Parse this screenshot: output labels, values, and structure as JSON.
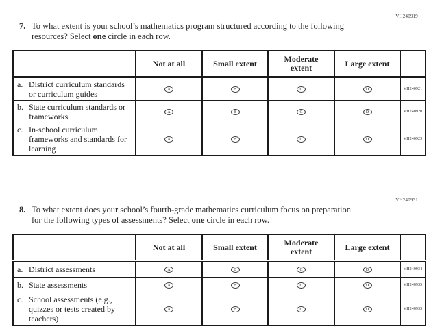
{
  "page": {
    "background": "#ffffff",
    "text_color": "#2b2b2b",
    "border_color": "#1a1a1a"
  },
  "columns": [
    "Not at all",
    "Small extent",
    "Moderate extent",
    "Large extent"
  ],
  "bubble_letters": [
    "A",
    "B",
    "C",
    "D"
  ],
  "questions": [
    {
      "code": "VH240919",
      "number": "7.",
      "text_before_bold": "To what extent is your school’s mathematics program structured according to the following resources? Select ",
      "bold_word": "one",
      "text_after_bold": " circle in each row.",
      "rows": [
        {
          "letter": "a.",
          "label": "District curriculum standards or curriculum guides",
          "code": "VH240921"
        },
        {
          "letter": "b.",
          "label": "State curriculum standards or frameworks",
          "code": "VH240920"
        },
        {
          "letter": "c.",
          "label": "In-school curriculum frameworks and standards for learning",
          "code": "VH240923"
        }
      ]
    },
    {
      "code": "VH240931",
      "number": "8.",
      "text_before_bold": "To what extent does your school’s fourth-grade mathematics curriculum focus on preparation for the following types of assessments? Select ",
      "bold_word": "one",
      "text_after_bold": " circle in each row.",
      "rows": [
        {
          "letter": "a.",
          "label": "District assessments",
          "code": "VH240934"
        },
        {
          "letter": "b.",
          "label": "State assessments",
          "code": "VH240935"
        },
        {
          "letter": "c.",
          "label": "School assessments (e.g., quizzes or tests created by teachers)",
          "code": "VH240933"
        }
      ]
    }
  ]
}
